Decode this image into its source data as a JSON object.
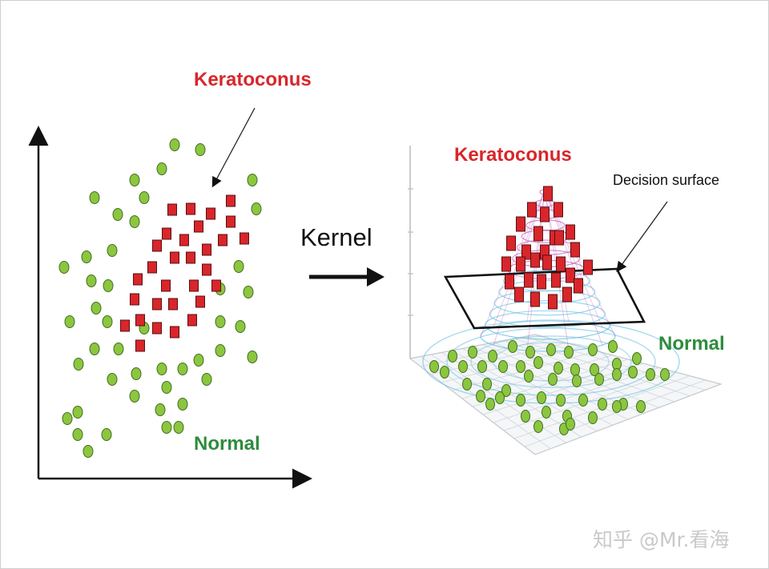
{
  "labels": {
    "left_keratoconus": "Keratoconus",
    "left_normal": "Normal",
    "kernel": "Kernel",
    "right_keratoconus": "Keratoconus",
    "decision_surface": "Decision surface",
    "right_normal": "Normal"
  },
  "watermark": "知乎 @Mr.看海",
  "colors": {
    "keratoconus": "#d8262b",
    "normal_fill": "#8cc63f",
    "normal_stroke": "#3f6f1f",
    "label_green": "#2e8b3e",
    "cone_top": "#c45bb5",
    "cone_base": "#5bb9e0"
  }
}
